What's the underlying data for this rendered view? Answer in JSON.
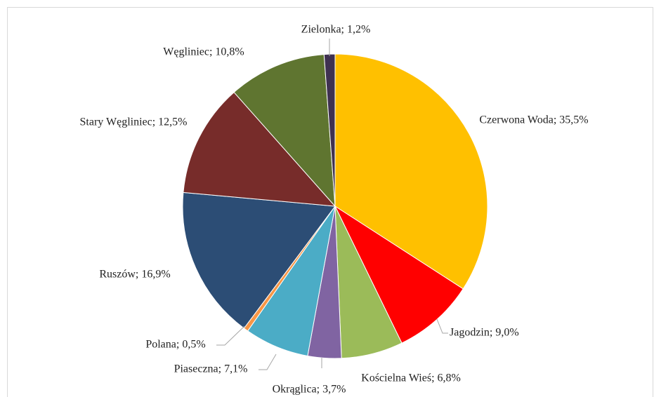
{
  "chart_data": {
    "type": "pie",
    "values": [
      35.5,
      9.0,
      6.8,
      3.7,
      7.1,
      0.5,
      16.9,
      12.5,
      10.8,
      1.2
    ],
    "value_labels": [
      "Czerwona Woda; 35,5%",
      "Jagodzin; 9,0%",
      "Kościelna Wieś; 6,8%",
      "Okrąglica; 3,7%",
      "Piaseczna; 7,1%",
      "Polana; 0,5%",
      "Ruszów; 16,9%",
      "Stary Węgliniec; 12,5%",
      "Węgliniec; 10,8%",
      "Zielonka; 1,2%"
    ],
    "colors": [
      "#FFC000",
      "#FF0000",
      "#9BBB59",
      "#8064A2",
      "#4BACC6",
      "#F79646",
      "#2C4D75",
      "#772C2A",
      "#5F7530",
      "#3F3151"
    ]
  }
}
